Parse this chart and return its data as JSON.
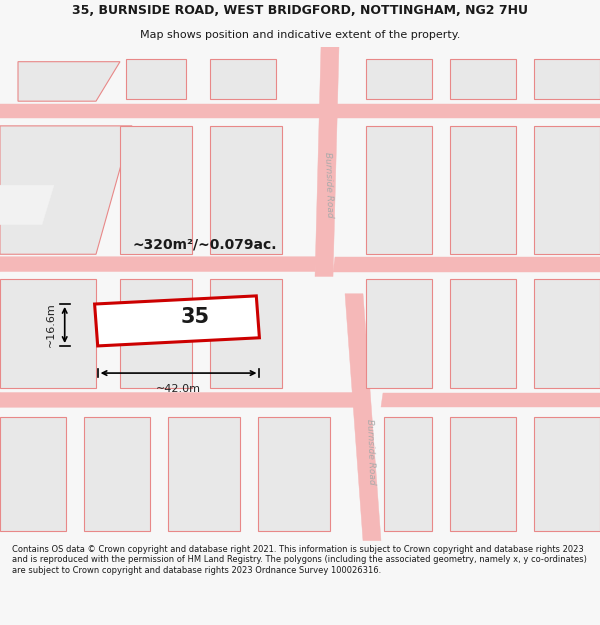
{
  "title_line1": "35, BURNSIDE ROAD, WEST BRIDGFORD, NOTTINGHAM, NG2 7HU",
  "title_line2": "Map shows position and indicative extent of the property.",
  "footer_text": "Contains OS data © Crown copyright and database right 2021. This information is subject to Crown copyright and database rights 2023 and is reproduced with the permission of HM Land Registry. The polygons (including the associated geometry, namely x, y co-ordinates) are subject to Crown copyright and database rights 2023 Ordnance Survey 100026316.",
  "area_label": "~320m²/~0.079ac.",
  "number_label": "35",
  "width_label": "~42.0m",
  "height_label": "~16.6m",
  "bg_color": "#f7f7f7",
  "map_bg_color": "#f2f2f2",
  "road_color": "#f5b8b8",
  "building_fill": "#e8e8e8",
  "building_edge": "#e88888",
  "highlight_color": "#cc0000",
  "highlight_fill": "#ffffff",
  "road_label_color": "#aaaaaa",
  "text_color": "#1a1a1a",
  "dim_color": "#222222",
  "title_fontsize": 9,
  "subtitle_fontsize": 8,
  "footer_fontsize": 6
}
